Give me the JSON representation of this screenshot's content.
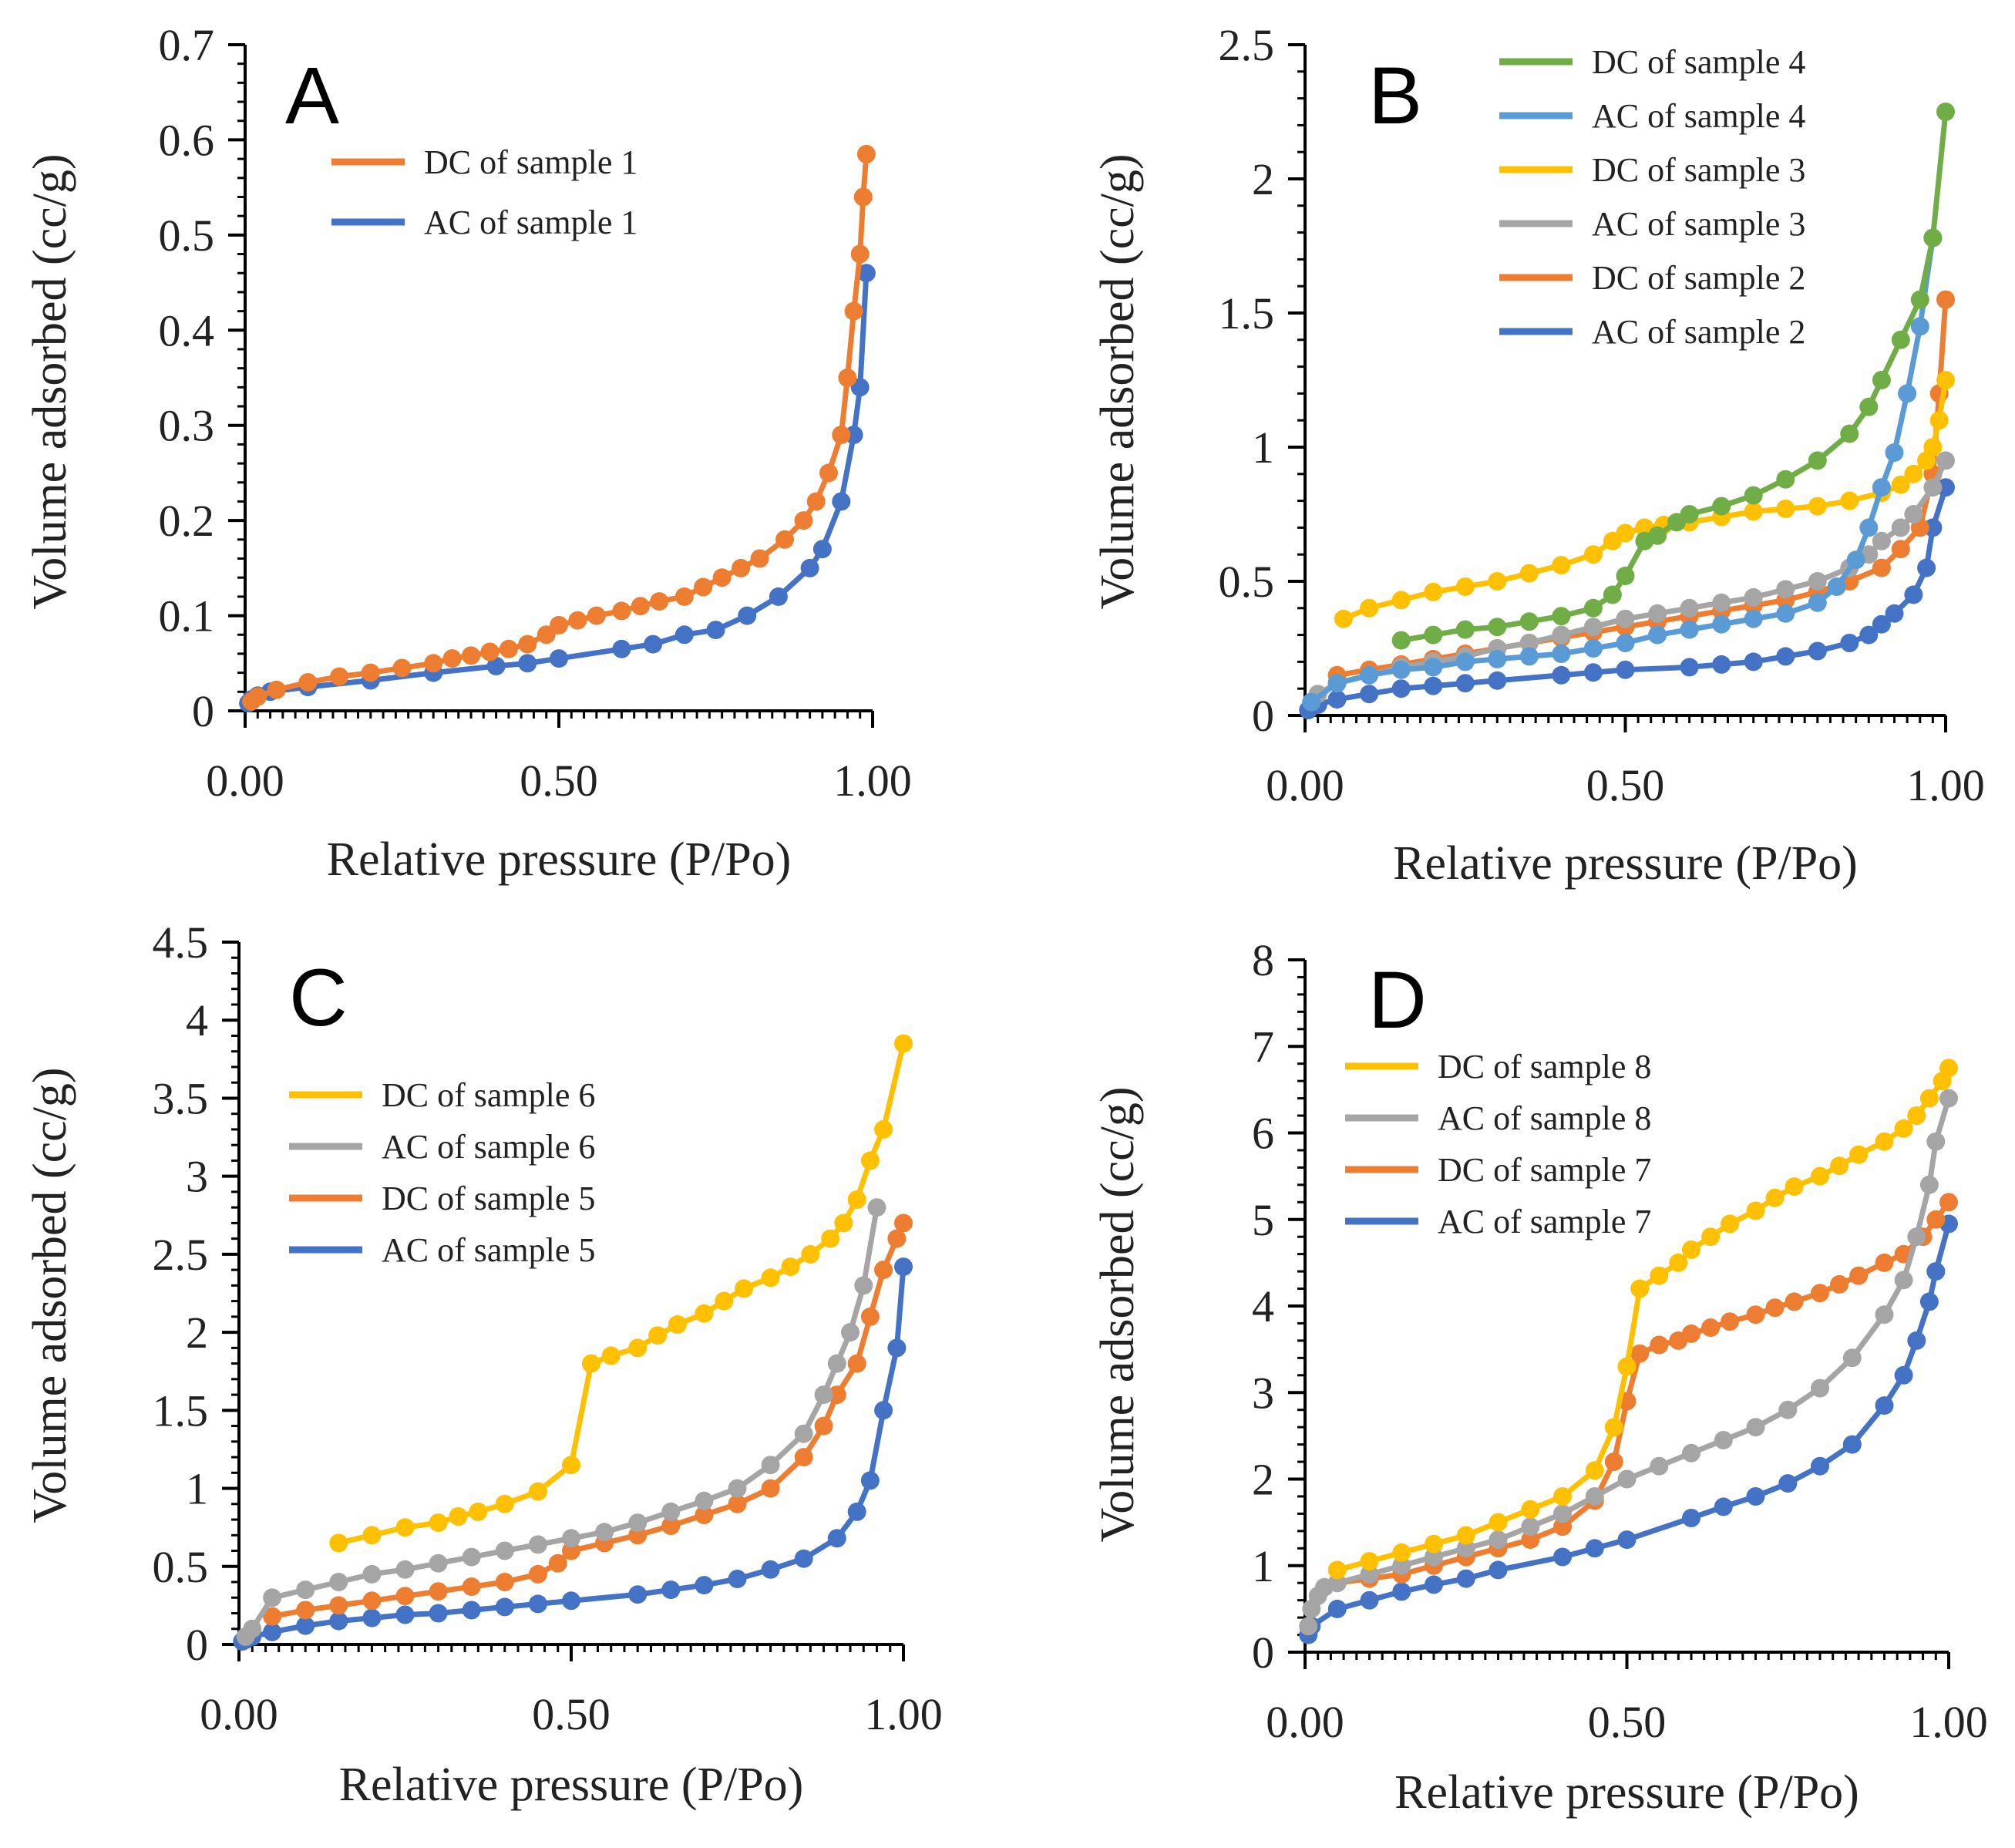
{
  "colors": {
    "blue": "#4472C4",
    "orange": "#ED7D31",
    "gray": "#A5A5A5",
    "yellow": "#FFC000",
    "green": "#70AD47",
    "lightblue": "#5B9BD5"
  },
  "chart_data": [
    {
      "id": "A",
      "panel_label": "A",
      "type": "line",
      "xlabel": "Relative pressure (P/Po)",
      "ylabel": "Volume adsorbed (cc/g)",
      "xlim": [
        0,
        1
      ],
      "ylim": [
        0,
        0.7
      ],
      "xticks": [
        0,
        0.5,
        1
      ],
      "xtick_labels": [
        "0.00",
        "0.50",
        "1.00"
      ],
      "yticks": [
        0,
        0.1,
        0.2,
        0.3,
        0.4,
        0.5,
        0.6,
        0.7
      ],
      "ytick_labels": [
        "0",
        "0.1",
        "0.2",
        "0.3",
        "0.4",
        "0.5",
        "0.6",
        "0.7"
      ],
      "legend_position": "top-center",
      "series": [
        {
          "name": "DC of sample 1",
          "color": "#ED7D31",
          "x": [
            0.01,
            0.02,
            0.05,
            0.1,
            0.15,
            0.2,
            0.25,
            0.3,
            0.33,
            0.36,
            0.39,
            0.42,
            0.45,
            0.48,
            0.5,
            0.53,
            0.56,
            0.6,
            0.63,
            0.66,
            0.7,
            0.73,
            0.76,
            0.79,
            0.82,
            0.86,
            0.89,
            0.91,
            0.93,
            0.95,
            0.96,
            0.97,
            0.98,
            0.985,
            0.99
          ],
          "y": [
            0.01,
            0.015,
            0.022,
            0.03,
            0.036,
            0.04,
            0.045,
            0.05,
            0.055,
            0.058,
            0.062,
            0.065,
            0.07,
            0.08,
            0.09,
            0.095,
            0.1,
            0.105,
            0.11,
            0.115,
            0.12,
            0.13,
            0.14,
            0.15,
            0.16,
            0.18,
            0.2,
            0.22,
            0.25,
            0.29,
            0.35,
            0.42,
            0.48,
            0.54,
            0.585
          ]
        },
        {
          "name": "AC of sample 1",
          "color": "#4472C4",
          "x": [
            0.005,
            0.01,
            0.02,
            0.04,
            0.1,
            0.2,
            0.3,
            0.4,
            0.45,
            0.5,
            0.6,
            0.65,
            0.7,
            0.75,
            0.8,
            0.85,
            0.9,
            0.92,
            0.95,
            0.97,
            0.98,
            0.99
          ],
          "y": [
            0.008,
            0.012,
            0.016,
            0.02,
            0.025,
            0.032,
            0.04,
            0.047,
            0.05,
            0.055,
            0.065,
            0.07,
            0.08,
            0.085,
            0.1,
            0.12,
            0.15,
            0.17,
            0.22,
            0.29,
            0.34,
            0.46
          ]
        }
      ]
    },
    {
      "id": "B",
      "panel_label": "B",
      "type": "line",
      "xlabel": "Relative pressure (P/Po)",
      "ylabel": "Volume adsorbed (cc/g)",
      "xlim": [
        0,
        1
      ],
      "ylim": [
        0,
        2.5
      ],
      "xticks": [
        0,
        0.5,
        1
      ],
      "xtick_labels": [
        "0.00",
        "0.50",
        "1.00"
      ],
      "yticks": [
        0,
        0.5,
        1,
        1.5,
        2,
        2.5
      ],
      "ytick_labels": [
        "0",
        "0.5",
        "1",
        "1.5",
        "2",
        "2.5"
      ],
      "legend_position": "top-right",
      "series": [
        {
          "name": "DC of sample 4",
          "color": "#70AD47",
          "x": [
            0.15,
            0.2,
            0.25,
            0.3,
            0.35,
            0.4,
            0.45,
            0.48,
            0.5,
            0.53,
            0.55,
            0.58,
            0.6,
            0.65,
            0.7,
            0.75,
            0.8,
            0.85,
            0.88,
            0.9,
            0.93,
            0.96,
            0.98,
            1.0
          ],
          "y": [
            0.28,
            0.3,
            0.32,
            0.33,
            0.35,
            0.37,
            0.4,
            0.45,
            0.52,
            0.65,
            0.67,
            0.72,
            0.75,
            0.78,
            0.82,
            0.88,
            0.95,
            1.05,
            1.15,
            1.25,
            1.4,
            1.55,
            1.78,
            2.25
          ]
        },
        {
          "name": "AC of sample 4",
          "color": "#5B9BD5",
          "x": [
            0.01,
            0.05,
            0.1,
            0.15,
            0.2,
            0.25,
            0.3,
            0.35,
            0.4,
            0.45,
            0.5,
            0.55,
            0.6,
            0.65,
            0.7,
            0.75,
            0.8,
            0.83,
            0.86,
            0.88,
            0.9,
            0.92,
            0.94,
            0.96,
            0.98
          ],
          "y": [
            0.05,
            0.12,
            0.15,
            0.17,
            0.18,
            0.2,
            0.21,
            0.22,
            0.23,
            0.25,
            0.27,
            0.3,
            0.32,
            0.34,
            0.36,
            0.38,
            0.42,
            0.48,
            0.58,
            0.7,
            0.85,
            0.98,
            1.2,
            1.45,
            1.78
          ]
        },
        {
          "name": "DC of sample 3",
          "color": "#FFC000",
          "x": [
            0.06,
            0.1,
            0.15,
            0.2,
            0.25,
            0.3,
            0.35,
            0.4,
            0.45,
            0.48,
            0.5,
            0.53,
            0.56,
            0.6,
            0.65,
            0.7,
            0.75,
            0.8,
            0.85,
            0.9,
            0.93,
            0.95,
            0.97,
            0.98,
            0.99,
            1.0
          ],
          "y": [
            0.36,
            0.4,
            0.43,
            0.46,
            0.48,
            0.5,
            0.53,
            0.56,
            0.6,
            0.65,
            0.68,
            0.7,
            0.71,
            0.72,
            0.74,
            0.76,
            0.77,
            0.78,
            0.8,
            0.83,
            0.86,
            0.9,
            0.95,
            1.0,
            1.1,
            1.25
          ]
        },
        {
          "name": "AC of sample 3",
          "color": "#A5A5A5",
          "x": [
            0.01,
            0.02,
            0.05,
            0.1,
            0.15,
            0.2,
            0.25,
            0.3,
            0.35,
            0.4,
            0.45,
            0.5,
            0.55,
            0.6,
            0.65,
            0.7,
            0.75,
            0.8,
            0.85,
            0.88,
            0.9,
            0.93,
            0.95,
            0.98,
            1.0
          ],
          "y": [
            0.05,
            0.08,
            0.12,
            0.15,
            0.18,
            0.2,
            0.22,
            0.25,
            0.27,
            0.3,
            0.33,
            0.36,
            0.38,
            0.4,
            0.42,
            0.44,
            0.47,
            0.5,
            0.55,
            0.6,
            0.65,
            0.7,
            0.75,
            0.85,
            0.95
          ]
        },
        {
          "name": "DC of sample 2",
          "color": "#ED7D31",
          "x": [
            0.05,
            0.1,
            0.15,
            0.2,
            0.25,
            0.3,
            0.35,
            0.4,
            0.45,
            0.5,
            0.55,
            0.6,
            0.65,
            0.7,
            0.75,
            0.8,
            0.85,
            0.9,
            0.93,
            0.96,
            0.98,
            0.99,
            1.0
          ],
          "y": [
            0.15,
            0.17,
            0.19,
            0.21,
            0.23,
            0.25,
            0.27,
            0.29,
            0.31,
            0.33,
            0.35,
            0.37,
            0.39,
            0.41,
            0.43,
            0.46,
            0.5,
            0.55,
            0.62,
            0.7,
            0.9,
            1.2,
            1.55
          ]
        },
        {
          "name": "AC of sample 2",
          "color": "#4472C4",
          "x": [
            0.005,
            0.02,
            0.05,
            0.1,
            0.15,
            0.2,
            0.25,
            0.3,
            0.4,
            0.45,
            0.5,
            0.6,
            0.65,
            0.7,
            0.75,
            0.8,
            0.85,
            0.88,
            0.9,
            0.92,
            0.95,
            0.97,
            0.98,
            1.0
          ],
          "y": [
            0.02,
            0.04,
            0.06,
            0.08,
            0.1,
            0.11,
            0.12,
            0.13,
            0.15,
            0.16,
            0.17,
            0.18,
            0.19,
            0.2,
            0.22,
            0.24,
            0.27,
            0.3,
            0.34,
            0.38,
            0.45,
            0.55,
            0.7,
            0.85
          ]
        }
      ]
    },
    {
      "id": "C",
      "panel_label": "C",
      "type": "line",
      "xlabel": "Relative pressure (P/Po)",
      "ylabel": "Volume adsorbed (cc/g)",
      "xlim": [
        0,
        1
      ],
      "ylim": [
        0,
        4.5
      ],
      "xticks": [
        0,
        0.5,
        1
      ],
      "xtick_labels": [
        "0.00",
        "0.50",
        "1.00"
      ],
      "yticks": [
        0,
        0.5,
        1,
        1.5,
        2,
        2.5,
        3,
        3.5,
        4,
        4.5
      ],
      "ytick_labels": [
        "0",
        "0.5",
        "1",
        "1.5",
        "2",
        "2.5",
        "3",
        "3.5",
        "4",
        "4.5"
      ],
      "legend_position": "middle-left",
      "series": [
        {
          "name": "DC of sample 6",
          "color": "#FFC000",
          "x": [
            0.15,
            0.2,
            0.25,
            0.3,
            0.33,
            0.36,
            0.4,
            0.45,
            0.5,
            0.53,
            0.56,
            0.6,
            0.63,
            0.66,
            0.7,
            0.73,
            0.76,
            0.8,
            0.83,
            0.86,
            0.89,
            0.91,
            0.93,
            0.95,
            0.97,
            1.0
          ],
          "y": [
            0.65,
            0.7,
            0.75,
            0.78,
            0.82,
            0.85,
            0.9,
            0.98,
            1.15,
            1.8,
            1.85,
            1.9,
            1.98,
            2.05,
            2.12,
            2.2,
            2.28,
            2.35,
            2.42,
            2.5,
            2.6,
            2.7,
            2.85,
            3.1,
            3.3,
            3.85
          ]
        },
        {
          "name": "AC of sample 6",
          "color": "#A5A5A5",
          "x": [
            0.01,
            0.02,
            0.05,
            0.1,
            0.15,
            0.2,
            0.25,
            0.3,
            0.35,
            0.4,
            0.45,
            0.5,
            0.55,
            0.6,
            0.65,
            0.7,
            0.75,
            0.8,
            0.85,
            0.88,
            0.9,
            0.92,
            0.94,
            0.96
          ],
          "y": [
            0.05,
            0.1,
            0.3,
            0.35,
            0.4,
            0.45,
            0.48,
            0.52,
            0.56,
            0.6,
            0.64,
            0.68,
            0.72,
            0.78,
            0.85,
            0.92,
            1.0,
            1.15,
            1.35,
            1.6,
            1.8,
            2.0,
            2.3,
            2.8
          ]
        },
        {
          "name": "DC of sample 5",
          "color": "#ED7D31",
          "x": [
            0.05,
            0.1,
            0.15,
            0.2,
            0.25,
            0.3,
            0.35,
            0.4,
            0.45,
            0.48,
            0.5,
            0.55,
            0.6,
            0.65,
            0.7,
            0.75,
            0.8,
            0.85,
            0.88,
            0.9,
            0.93,
            0.95,
            0.97,
            0.99,
            1.0
          ],
          "y": [
            0.18,
            0.22,
            0.25,
            0.28,
            0.31,
            0.34,
            0.37,
            0.4,
            0.45,
            0.52,
            0.6,
            0.65,
            0.7,
            0.76,
            0.83,
            0.9,
            1.0,
            1.2,
            1.4,
            1.6,
            1.8,
            2.1,
            2.4,
            2.6,
            2.7
          ]
        },
        {
          "name": "AC of sample 5",
          "color": "#4472C4",
          "x": [
            0.005,
            0.01,
            0.02,
            0.05,
            0.1,
            0.15,
            0.2,
            0.25,
            0.3,
            0.35,
            0.4,
            0.45,
            0.5,
            0.6,
            0.65,
            0.7,
            0.75,
            0.8,
            0.85,
            0.9,
            0.93,
            0.95,
            0.97,
            0.99,
            1.0
          ],
          "y": [
            0.02,
            0.03,
            0.05,
            0.08,
            0.12,
            0.15,
            0.17,
            0.19,
            0.2,
            0.22,
            0.24,
            0.26,
            0.28,
            0.32,
            0.35,
            0.38,
            0.42,
            0.48,
            0.55,
            0.68,
            0.85,
            1.05,
            1.5,
            1.9,
            2.42
          ]
        }
      ]
    },
    {
      "id": "D",
      "panel_label": "D",
      "type": "line",
      "xlabel": "Relative pressure (P/Po)",
      "ylabel": "Volume adsorbed  (cc/g)",
      "xlim": [
        0,
        1
      ],
      "ylim": [
        0,
        8
      ],
      "xticks": [
        0,
        0.5,
        1
      ],
      "xtick_labels": [
        "0.00",
        "0.50",
        "1.00"
      ],
      "yticks": [
        0,
        1,
        2,
        3,
        4,
        5,
        6,
        7,
        8
      ],
      "ytick_labels": [
        "0",
        "1",
        "2",
        "3",
        "4",
        "5",
        "6",
        "7",
        "8"
      ],
      "legend_position": "top-left",
      "series": [
        {
          "name": "DC of sample 8",
          "color": "#FFC000",
          "x": [
            0.05,
            0.1,
            0.15,
            0.2,
            0.25,
            0.3,
            0.35,
            0.4,
            0.45,
            0.48,
            0.5,
            0.52,
            0.55,
            0.58,
            0.6,
            0.63,
            0.66,
            0.7,
            0.73,
            0.76,
            0.8,
            0.83,
            0.86,
            0.9,
            0.93,
            0.95,
            0.97,
            0.99,
            1.0
          ],
          "y": [
            0.95,
            1.05,
            1.15,
            1.25,
            1.35,
            1.5,
            1.65,
            1.8,
            2.1,
            2.6,
            3.3,
            4.2,
            4.35,
            4.5,
            4.65,
            4.8,
            4.95,
            5.1,
            5.25,
            5.38,
            5.5,
            5.62,
            5.75,
            5.9,
            6.05,
            6.2,
            6.4,
            6.6,
            6.75
          ]
        },
        {
          "name": "AC of sample 8",
          "color": "#A5A5A5",
          "x": [
            0.005,
            0.01,
            0.02,
            0.03,
            0.05,
            0.1,
            0.15,
            0.2,
            0.25,
            0.3,
            0.35,
            0.4,
            0.45,
            0.5,
            0.55,
            0.6,
            0.65,
            0.7,
            0.75,
            0.8,
            0.85,
            0.9,
            0.93,
            0.95,
            0.97,
            0.98,
            1.0
          ],
          "y": [
            0.3,
            0.5,
            0.65,
            0.75,
            0.8,
            0.9,
            1.0,
            1.1,
            1.2,
            1.3,
            1.45,
            1.6,
            1.8,
            2.0,
            2.15,
            2.3,
            2.45,
            2.6,
            2.8,
            3.05,
            3.4,
            3.9,
            4.3,
            4.8,
            5.4,
            5.9,
            6.4
          ]
        },
        {
          "name": "DC of sample 7",
          "color": "#ED7D31",
          "x": [
            0.05,
            0.1,
            0.15,
            0.2,
            0.25,
            0.3,
            0.35,
            0.4,
            0.45,
            0.48,
            0.5,
            0.52,
            0.55,
            0.58,
            0.6,
            0.63,
            0.66,
            0.7,
            0.73,
            0.76,
            0.8,
            0.83,
            0.86,
            0.9,
            0.93,
            0.96,
            0.98,
            1.0
          ],
          "y": [
            0.8,
            0.85,
            0.9,
            1.0,
            1.1,
            1.2,
            1.3,
            1.45,
            1.75,
            2.2,
            2.9,
            3.45,
            3.55,
            3.6,
            3.68,
            3.75,
            3.82,
            3.9,
            3.98,
            4.05,
            4.15,
            4.25,
            4.35,
            4.5,
            4.6,
            4.8,
            5.0,
            5.2
          ]
        },
        {
          "name": "AC of sample 7",
          "color": "#4472C4",
          "x": [
            0.005,
            0.01,
            0.05,
            0.1,
            0.15,
            0.2,
            0.25,
            0.3,
            0.4,
            0.45,
            0.5,
            0.6,
            0.65,
            0.7,
            0.75,
            0.8,
            0.85,
            0.9,
            0.93,
            0.95,
            0.97,
            0.98,
            1.0
          ],
          "y": [
            0.2,
            0.3,
            0.5,
            0.6,
            0.7,
            0.78,
            0.85,
            0.95,
            1.1,
            1.2,
            1.3,
            1.55,
            1.68,
            1.8,
            1.95,
            2.15,
            2.4,
            2.85,
            3.2,
            3.6,
            4.05,
            4.4,
            4.95
          ]
        }
      ]
    }
  ]
}
